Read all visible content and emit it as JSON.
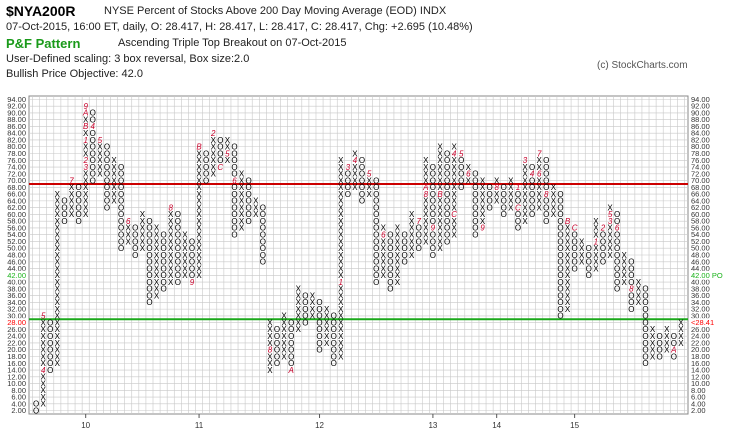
{
  "header": {
    "symbol": "$NYA200R",
    "name": "NYSE Percent of Stocks Above 200 Day Moving Average (EOD)  INDX",
    "ohlc": "07-Oct-2015, 16:00 ET, daily, O: 28.417, H: 28.417, L: 28.417, C: 28.417, Chg: +2.695 (10.48%)",
    "pattern_title": "P&F Pattern",
    "pattern_desc": "Ascending Triple Top Breakout on 07-Oct-2015",
    "scaling": "User-Defined scaling: 3 box reversal, Box size:2.0",
    "objective": "Bullish Price Objective: 42.0",
    "copyright": "(c) StockCharts.com"
  },
  "chart_data": {
    "type": "point-and-figure",
    "box_size": 2.0,
    "reversal": 3,
    "ylim": [
      2,
      94
    ],
    "y_ticks": [
      "2.00",
      "4.00",
      "6.00",
      "8.00",
      "10.00",
      "12.00",
      "14.00",
      "16.00",
      "18.00",
      "20.00",
      "22.00",
      "24.00",
      "26.00",
      "28.00",
      "30.00",
      "32.00",
      "34.00",
      "36.00",
      "38.00",
      "40.00",
      "42.00",
      "44.00",
      "46.00",
      "48.00",
      "50.00",
      "52.00",
      "54.00",
      "56.00",
      "58.00",
      "60.00",
      "62.00",
      "64.00",
      "66.00",
      "68.00",
      "70.00",
      "72.00",
      "74.00",
      "76.00",
      "78.00",
      "80.00",
      "82.00",
      "84.00",
      "86.00",
      "88.00",
      "90.00",
      "92.00",
      "94.00"
    ],
    "x_year_labels": [
      {
        "label": "10",
        "col": 7
      },
      {
        "label": "11",
        "col": 23
      },
      {
        "label": "12",
        "col": 40
      },
      {
        "label": "13",
        "col": 56
      },
      {
        "label": "14",
        "col": 65
      },
      {
        "label": "15",
        "col": 76
      }
    ],
    "columns": [
      {
        "t": "O",
        "lo": 2,
        "hi": 4
      },
      {
        "t": "X",
        "lo": 4,
        "hi": 30,
        "marks": {
          "14": "4",
          "30": "5"
        }
      },
      {
        "t": "O",
        "lo": 14,
        "hi": 28
      },
      {
        "t": "X",
        "lo": 16,
        "hi": 66
      },
      {
        "t": "O",
        "lo": 58,
        "hi": 64
      },
      {
        "t": "X",
        "lo": 60,
        "hi": 70,
        "marks": {
          "70": "7"
        }
      },
      {
        "t": "O",
        "lo": 58,
        "hi": 68
      },
      {
        "t": "X",
        "lo": 60,
        "hi": 92,
        "marks": {
          "92": "9",
          "90": "A",
          "86": "B",
          "82": "1",
          "76": "2",
          "74": "3"
        }
      },
      {
        "t": "O",
        "lo": 70,
        "hi": 90,
        "marks": {
          "86": "4"
        }
      },
      {
        "t": "X",
        "lo": 72,
        "hi": 82,
        "marks": {
          "82": "5"
        }
      },
      {
        "t": "O",
        "lo": 62,
        "hi": 80
      },
      {
        "t": "X",
        "lo": 64,
        "hi": 76
      },
      {
        "t": "O",
        "lo": 50,
        "hi": 74
      },
      {
        "t": "X",
        "lo": 52,
        "hi": 58,
        "marks": {
          "58": "6"
        }
      },
      {
        "t": "O",
        "lo": 48,
        "hi": 56
      },
      {
        "t": "X",
        "lo": 50,
        "hi": 60
      },
      {
        "t": "O",
        "lo": 34,
        "hi": 58
      },
      {
        "t": "X",
        "lo": 36,
        "hi": 56
      },
      {
        "t": "O",
        "lo": 38,
        "hi": 54
      },
      {
        "t": "X",
        "lo": 40,
        "hi": 62,
        "marks": {
          "62": "8"
        }
      },
      {
        "t": "O",
        "lo": 40,
        "hi": 60
      },
      {
        "t": "X",
        "lo": 42,
        "hi": 54
      },
      {
        "t": "O",
        "lo": 40,
        "hi": 52,
        "marks": {
          "40": "9"
        }
      },
      {
        "t": "X",
        "lo": 42,
        "hi": 80,
        "marks": {
          "80": "B"
        }
      },
      {
        "t": "O",
        "lo": 70,
        "hi": 78
      },
      {
        "t": "X",
        "lo": 72,
        "hi": 84,
        "marks": {
          "84": "2"
        }
      },
      {
        "t": "O",
        "lo": 74,
        "hi": 82,
        "marks": {
          "74": "C"
        }
      },
      {
        "t": "X",
        "lo": 76,
        "hi": 82,
        "marks": {
          "78": "5"
        }
      },
      {
        "t": "O",
        "lo": 54,
        "hi": 80,
        "marks": {
          "70": "6"
        }
      },
      {
        "t": "X",
        "lo": 56,
        "hi": 72
      },
      {
        "t": "O",
        "lo": 58,
        "hi": 70
      },
      {
        "t": "X",
        "lo": 60,
        "hi": 64
      },
      {
        "t": "O",
        "lo": 46,
        "hi": 62
      },
      {
        "t": "X",
        "lo": 14,
        "hi": 28,
        "marks": {
          "20": "8"
        }
      },
      {
        "t": "O",
        "lo": 16,
        "hi": 26
      },
      {
        "t": "X",
        "lo": 18,
        "hi": 30
      },
      {
        "t": "O",
        "lo": 14,
        "hi": 28,
        "marks": {
          "14": "A"
        }
      },
      {
        "t": "X",
        "lo": 26,
        "hi": 38
      },
      {
        "t": "O",
        "lo": 28,
        "hi": 36
      },
      {
        "t": "X",
        "lo": 30,
        "hi": 36
      },
      {
        "t": "O",
        "lo": 20,
        "hi": 34
      },
      {
        "t": "X",
        "lo": 22,
        "hi": 32
      },
      {
        "t": "O",
        "lo": 16,
        "hi": 30
      },
      {
        "t": "X",
        "lo": 18,
        "hi": 76,
        "marks": {
          "40": "1"
        }
      },
      {
        "t": "O",
        "lo": 66,
        "hi": 74,
        "marks": {
          "74": "3"
        }
      },
      {
        "t": "X",
        "lo": 68,
        "hi": 78,
        "marks": {
          "76": "4"
        }
      },
      {
        "t": "O",
        "lo": 64,
        "hi": 76
      },
      {
        "t": "X",
        "lo": 66,
        "hi": 72,
        "marks": {
          "72": "5"
        }
      },
      {
        "t": "O",
        "lo": 40,
        "hi": 70
      },
      {
        "t": "X",
        "lo": 42,
        "hi": 56,
        "marks": {
          "54": "6"
        }
      },
      {
        "t": "O",
        "lo": 38,
        "hi": 54
      },
      {
        "t": "X",
        "lo": 40,
        "hi": 56
      },
      {
        "t": "O",
        "lo": 46,
        "hi": 54
      },
      {
        "t": "X",
        "lo": 48,
        "hi": 60
      },
      {
        "t": "O",
        "lo": 50,
        "hi": 58,
        "marks": {
          "58": "7"
        }
      },
      {
        "t": "X",
        "lo": 52,
        "hi": 76,
        "marks": {
          "66": "8",
          "68": "A"
        }
      },
      {
        "t": "O",
        "lo": 48,
        "hi": 74,
        "marks": {
          "56": "9"
        }
      },
      {
        "t": "X",
        "lo": 50,
        "hi": 80,
        "marks": {
          "66": "B"
        }
      },
      {
        "t": "O",
        "lo": 52,
        "hi": 78
      },
      {
        "t": "X",
        "lo": 54,
        "hi": 80,
        "marks": {
          "78": "4",
          "60": "C"
        }
      },
      {
        "t": "O",
        "lo": 68,
        "hi": 78,
        "marks": {
          "78": "5"
        }
      },
      {
        "t": "X",
        "lo": 70,
        "hi": 74,
        "marks": {
          "72": "6"
        }
      },
      {
        "t": "O",
        "lo": 54,
        "hi": 72
      },
      {
        "t": "X",
        "lo": 56,
        "hi": 70,
        "marks": {
          "56": "9"
        }
      },
      {
        "t": "O",
        "lo": 62,
        "hi": 68
      },
      {
        "t": "X",
        "lo": 64,
        "hi": 70,
        "marks": {
          "68": "8"
        }
      },
      {
        "t": "O",
        "lo": 60,
        "hi": 68
      },
      {
        "t": "X",
        "lo": 62,
        "hi": 70
      },
      {
        "t": "O",
        "lo": 56,
        "hi": 68,
        "marks": {
          "68": "1",
          "62": "C"
        }
      },
      {
        "t": "X",
        "lo": 58,
        "hi": 76,
        "marks": {
          "76": "3"
        }
      },
      {
        "t": "O",
        "lo": 60,
        "hi": 74,
        "marks": {
          "72": "4"
        }
      },
      {
        "t": "X",
        "lo": 62,
        "hi": 78,
        "marks": {
          "78": "7",
          "72": "6"
        }
      },
      {
        "t": "O",
        "lo": 58,
        "hi": 76,
        "marks": {
          "66": "8"
        }
      },
      {
        "t": "X",
        "lo": 60,
        "hi": 68
      },
      {
        "t": "O",
        "lo": 30,
        "hi": 66
      },
      {
        "t": "X",
        "lo": 32,
        "hi": 58,
        "marks": {
          "58": "B"
        }
      },
      {
        "t": "O",
        "lo": 44,
        "hi": 56,
        "marks": {
          "56": "C"
        }
      },
      {
        "t": "X",
        "lo": 46,
        "hi": 52
      },
      {
        "t": "O",
        "lo": 42,
        "hi": 50
      },
      {
        "t": "X",
        "lo": 44,
        "hi": 58,
        "marks": {
          "52": "1"
        }
      },
      {
        "t": "O",
        "lo": 46,
        "hi": 56,
        "marks": {
          "56": "2"
        }
      },
      {
        "t": "X",
        "lo": 48,
        "hi": 62,
        "marks": {
          "58": "3",
          "60": "5"
        }
      },
      {
        "t": "O",
        "lo": 38,
        "hi": 60,
        "marks": {
          "56": "6"
        }
      },
      {
        "t": "X",
        "lo": 40,
        "hi": 48
      },
      {
        "t": "O",
        "lo": 32,
        "hi": 46,
        "marks": {
          "38": "8"
        }
      },
      {
        "t": "X",
        "lo": 34,
        "hi": 40
      },
      {
        "t": "O",
        "lo": 16,
        "hi": 38
      },
      {
        "t": "X",
        "lo": 18,
        "hi": 26
      },
      {
        "t": "O",
        "lo": 18,
        "hi": 24
      },
      {
        "t": "X",
        "lo": 20,
        "hi": 26
      },
      {
        "t": "O",
        "lo": 18,
        "hi": 24,
        "marks": {
          "20": "A"
        }
      },
      {
        "t": "X",
        "lo": 22,
        "hi": 28
      }
    ],
    "resistance_line": {
      "value": 69,
      "color": "#cc0000"
    },
    "support_line": {
      "value": 29,
      "color": "#1aa81a"
    },
    "price_tags": [
      {
        "text": "28.00",
        "side": "left",
        "value": 28,
        "color": "#ff0000"
      },
      {
        "text": "42.00",
        "side": "left",
        "value": 42,
        "color": "#19b219"
      },
      {
        "text": "42.00 PO",
        "side": "right",
        "value": 42,
        "color": "#19b219"
      },
      {
        "text": "<28.41",
        "side": "right",
        "value": 28,
        "color": "#ff0000"
      }
    ],
    "colors": {
      "x": "#000000",
      "o": "#000000",
      "month_mark": "#c8002a",
      "grid": "#c8c8c8"
    },
    "grid": true
  }
}
